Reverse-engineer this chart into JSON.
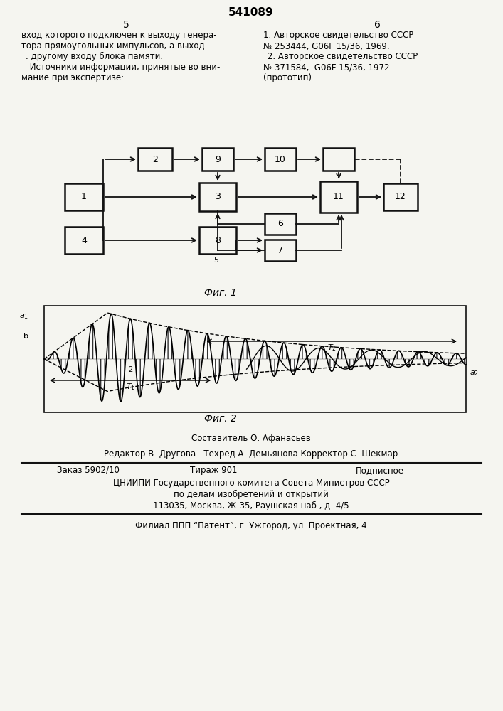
{
  "title": "541089",
  "page_left": "5",
  "page_right": "6",
  "text_left": "вход которого подключен к выходу генера-\nтора прямоугольных импульсов, а выход-\n : другому входу блока памяти.\n Источники информации, принятые во вни-\nмание при экспертизе:",
  "text_right": "1. Авторское свидетельство СССР\n№ 253444, G06F 15/36, 1969.\n 2. Авторское свидетельство СССР\n№ 371584,  G06F 15/36, 1972.\n(прототип).",
  "fig1_label": "Фиг. 1",
  "fig2_label": "Фиг. 2",
  "footer_composer": "Составитель О. Афанасьев",
  "footer_editor": "Редактор В. Другова   Техред А. Демьянова Корректор С. Шекмар",
  "footer_order": "Заказ 5902/10",
  "footer_tirazh": "Тираж 901",
  "footer_podpisnoe": "Подписное",
  "footer_org1": "ЦНИИПИ Государственного комитета Совета Министров СССР",
  "footer_org2": "по делам изобретений и открытий",
  "footer_org3": "113035, Москва, Ж-35, Раушская наб., д. 4/5",
  "footer_filial": "Филиал ППП “Патент”, г. Ужгород, ул. Проектная, 4",
  "bg_color": "#f5f5f0",
  "box_color": "#111111",
  "arrow_color": "#111111"
}
